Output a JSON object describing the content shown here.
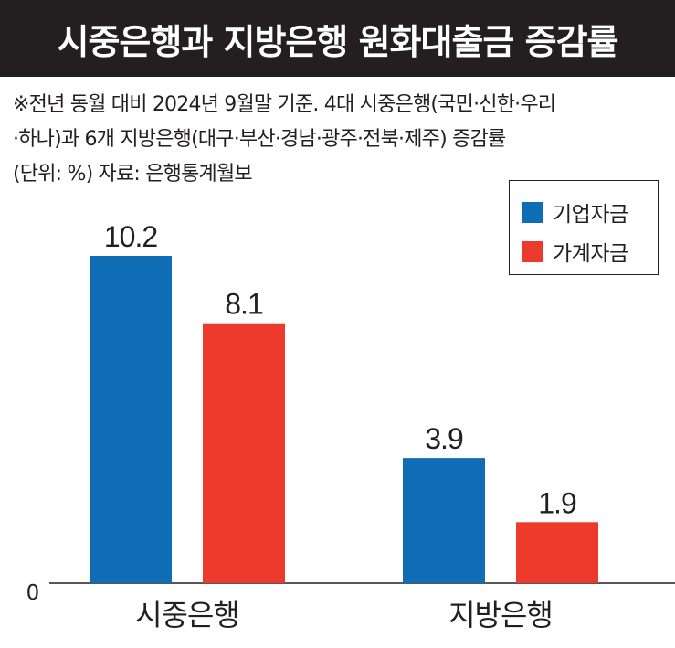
{
  "header": {
    "title": "시중은행과 지방은행 원화대출금 증감률"
  },
  "notes": {
    "line1": "※전년 동월 대비 2024년 9월말 기준. 4대 시중은행(국민·신한·우리",
    "line2": "·하나)과 6개 지방은행(대구·부산·경남·광주·전북·제주) 증감률",
    "line3": "(단위: %) 자료: 은행통계월보"
  },
  "colors": {
    "corporate": "#0f6db5",
    "household": "#ec3a2c",
    "title_bg": "#231f20"
  },
  "chart_data": {
    "type": "bar",
    "categories": [
      "시중은행",
      "지방은행"
    ],
    "series": [
      {
        "name": "기업자금",
        "values": [
          10.2,
          3.9
        ]
      },
      {
        "name": "가계자금",
        "values": [
          8.1,
          1.9
        ]
      }
    ],
    "value_labels": [
      [
        "10.2",
        "3.9"
      ],
      [
        "8.1",
        "1.9"
      ]
    ],
    "y_tick_label": "0",
    "ylim": [
      0,
      10.2
    ],
    "legend": "top-right",
    "grid": false
  }
}
